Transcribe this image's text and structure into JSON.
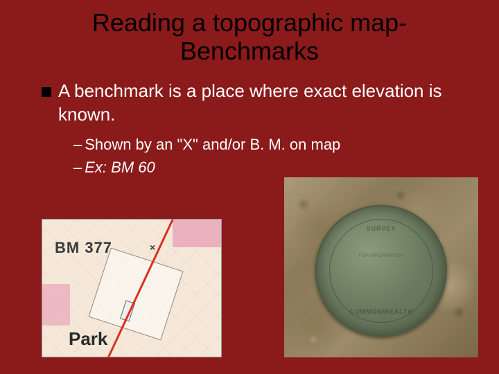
{
  "title_line1": "Reading a topographic map-",
  "title_line2": "Benchmarks",
  "main_bullet": "A benchmark is a place where exact elevation is known.",
  "sub_bullets": [
    {
      "text": "Shown by an \"X\" and/or B. M. on map",
      "italic": false
    },
    {
      "text": "Ex: BM 60",
      "italic": true
    }
  ],
  "map_image": {
    "bm_label": "BM 377",
    "park_label": "Park",
    "x_mark": "×",
    "red_line_color": "#d83020",
    "bg_color": "#f5e8d8"
  },
  "disk_image": {
    "arc_top": "SURVEY",
    "arc_bottom": "COMMONWEALTH",
    "center_text": "FOR INFORMATION"
  },
  "colors": {
    "background": "#8b1a1a",
    "title": "#000000",
    "body_text": "#ffffff",
    "bullet_square": "#000000"
  }
}
